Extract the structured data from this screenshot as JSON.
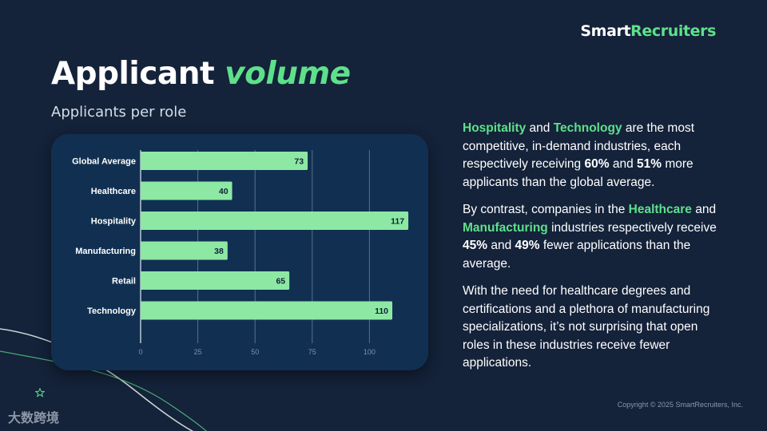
{
  "brand": {
    "name_part1": "Smart",
    "name_part2": "Recruiters"
  },
  "title": {
    "part1": "Applicant ",
    "part2": "volume"
  },
  "subtitle": "Applicants per role",
  "paragraphs": {
    "p1": {
      "hl1": "Hospitality",
      "t1": " and ",
      "hl2": "Technology",
      "t2": " are the most competitive, in-demand industries, each respectively receiving ",
      "b1": "60%",
      "t3": " and ",
      "b2": "51%",
      "t4": " more applicants than the global average."
    },
    "p2": {
      "t1": "By contrast, companies in the ",
      "hl1": "Healthcare",
      "t2": " and ",
      "hl2": "Manufacturing",
      "t3": " industries respectively receive ",
      "b1": "45%",
      "t4": " and ",
      "b2": "49%",
      "t5": " fewer applications than the average."
    },
    "p3": "With the need for healthcare degrees and certifications and a plethora of manufacturing specializations, it’s not surprising that open roles in these industries receive fewer applications."
  },
  "copyright": "Copyright © 2025 SmartRecruiters, Inc.",
  "watermark": "大数跨境",
  "colors": {
    "accent": "#5ee08a",
    "bar": "#8de8a4",
    "background": "#14223a",
    "card": "#113051"
  },
  "chart_data": {
    "type": "bar",
    "orientation": "horizontal",
    "categories": [
      "Global Average",
      "Healthcare",
      "Hospitality",
      "Manufacturing",
      "Retail",
      "Technology"
    ],
    "values": [
      73,
      40,
      117,
      38,
      65,
      110
    ],
    "xticks": [
      0,
      25,
      50,
      75,
      100
    ],
    "xlim": [
      0,
      125
    ],
    "grid": true
  }
}
